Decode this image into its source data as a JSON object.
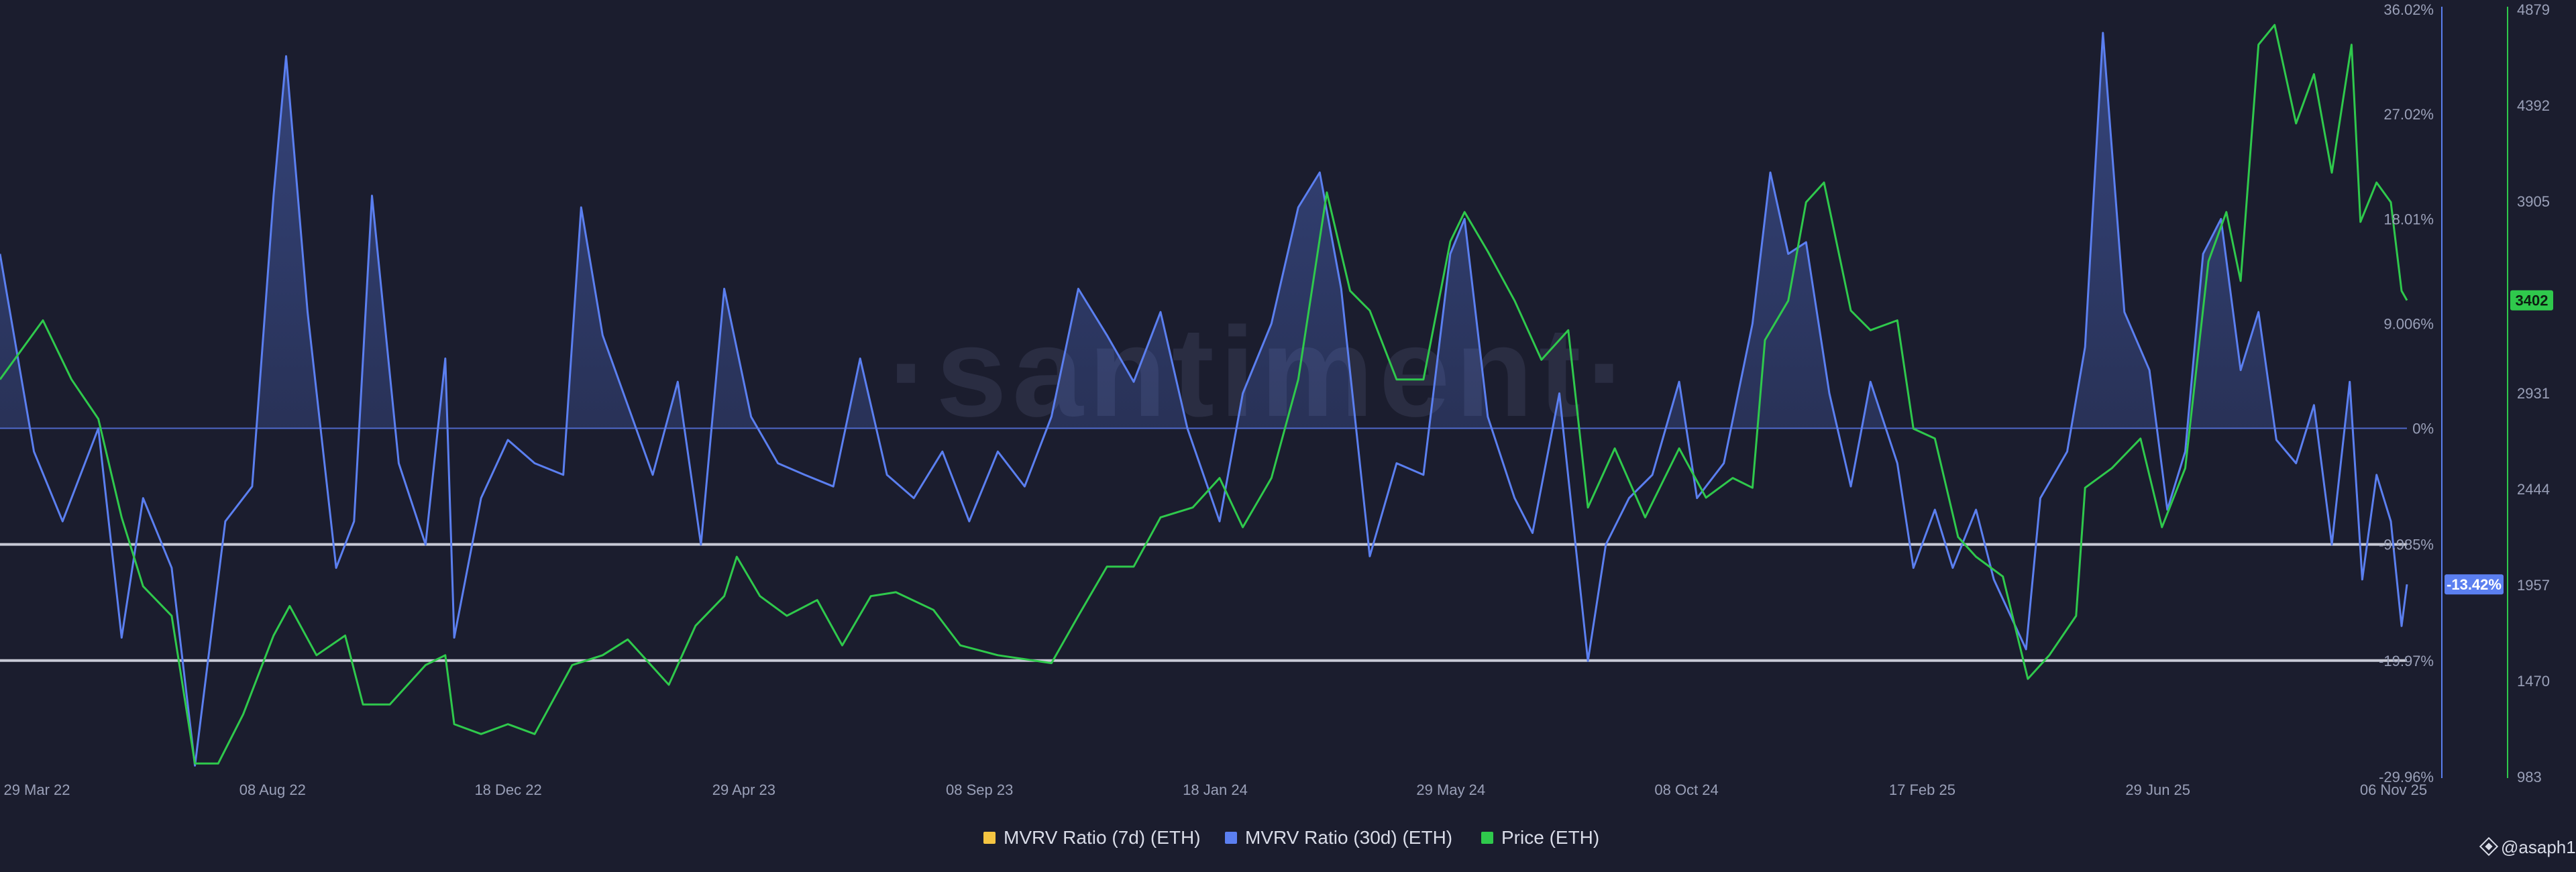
{
  "chart_data": {
    "type": "line",
    "title": "",
    "x_axis": {
      "ticks": [
        "29 Mar 22",
        "08 Aug 22",
        "18 Dec 22",
        "29 Apr 23",
        "08 Sep 23",
        "18 Jan 24",
        "29 May 24",
        "08 Oct 24",
        "17 Feb 25",
        "29 Jun 25",
        "06 Nov 25"
      ],
      "range": [
        "2022-03-01",
        "2025-11-06"
      ]
    },
    "y_axis_mvrv": {
      "ticks": [
        "36.02%",
        "27.02%",
        "18.01%",
        "9.006%",
        "0%",
        "-9.985%",
        "-19.97%",
        "-29.96%"
      ],
      "range": [
        -29.96,
        36.02
      ]
    },
    "y_axis_price": {
      "ticks": [
        "4879",
        "4392",
        "3905",
        "3418",
        "2931",
        "2444",
        "1957",
        "1470",
        "983"
      ],
      "range": [
        983,
        4879
      ]
    },
    "reference_lines": [
      0,
      -9.985,
      -19.97
    ],
    "current_values": {
      "mvrv_30d": "-13.42%",
      "price": "3402"
    },
    "legend": [
      {
        "name": "MVRV Ratio (7d) (ETH)",
        "color": "#f5c542"
      },
      {
        "name": "MVRV Ratio (30d) (ETH)",
        "color": "#5b7ff0"
      },
      {
        "name": "Price (ETH)",
        "color": "#2fc94c"
      }
    ],
    "series": [
      {
        "name": "MVRV Ratio (30d) (ETH)",
        "color": "#5b7ff0",
        "points": [
          [
            "2022-03-01",
            15
          ],
          [
            "2022-03-20",
            -2
          ],
          [
            "2022-04-05",
            -8
          ],
          [
            "2022-04-25",
            0
          ],
          [
            "2022-05-08",
            -18
          ],
          [
            "2022-05-20",
            -6
          ],
          [
            "2022-06-05",
            -12
          ],
          [
            "2022-06-18",
            -29
          ],
          [
            "2022-07-05",
            -8
          ],
          [
            "2022-07-20",
            -5
          ],
          [
            "2022-08-01",
            20
          ],
          [
            "2022-08-08",
            32
          ],
          [
            "2022-08-20",
            10
          ],
          [
            "2022-09-05",
            -12
          ],
          [
            "2022-09-15",
            -8
          ],
          [
            "2022-09-25",
            20
          ],
          [
            "2022-10-10",
            -3
          ],
          [
            "2022-10-25",
            -10
          ],
          [
            "2022-11-05",
            6
          ],
          [
            "2022-11-10",
            -18
          ],
          [
            "2022-11-25",
            -6
          ],
          [
            "2022-12-10",
            -1
          ],
          [
            "2022-12-25",
            -3
          ],
          [
            "2023-01-10",
            -4
          ],
          [
            "2023-01-20",
            19
          ],
          [
            "2023-02-01",
            8
          ],
          [
            "2023-02-15",
            2
          ],
          [
            "2023-03-01",
            -4
          ],
          [
            "2023-03-15",
            4
          ],
          [
            "2023-03-28",
            -10
          ],
          [
            "2023-04-10",
            12
          ],
          [
            "2023-04-25",
            1
          ],
          [
            "2023-05-10",
            -3
          ],
          [
            "2023-05-25",
            -4
          ],
          [
            "2023-06-10",
            -5
          ],
          [
            "2023-06-25",
            6
          ],
          [
            "2023-07-10",
            -4
          ],
          [
            "2023-07-25",
            -6
          ],
          [
            "2023-08-10",
            -2
          ],
          [
            "2023-08-25",
            -8
          ],
          [
            "2023-09-10",
            -2
          ],
          [
            "2023-09-25",
            -5
          ],
          [
            "2023-10-10",
            1
          ],
          [
            "2023-10-25",
            12
          ],
          [
            "2023-11-10",
            8
          ],
          [
            "2023-11-25",
            4
          ],
          [
            "2023-12-10",
            10
          ],
          [
            "2023-12-25",
            0
          ],
          [
            "2024-01-12",
            -8
          ],
          [
            "2024-01-25",
            3
          ],
          [
            "2024-02-10",
            9
          ],
          [
            "2024-02-25",
            19
          ],
          [
            "2024-03-08",
            22
          ],
          [
            "2024-03-20",
            12
          ],
          [
            "2024-04-05",
            -11
          ],
          [
            "2024-04-20",
            -3
          ],
          [
            "2024-05-05",
            -4
          ],
          [
            "2024-05-20",
            15
          ],
          [
            "2024-05-28",
            18
          ],
          [
            "2024-06-10",
            1
          ],
          [
            "2024-06-25",
            -6
          ],
          [
            "2024-07-05",
            -9
          ],
          [
            "2024-07-20",
            3
          ],
          [
            "2024-08-05",
            -20
          ],
          [
            "2024-08-15",
            -10
          ],
          [
            "2024-08-28",
            -6
          ],
          [
            "2024-09-10",
            -4
          ],
          [
            "2024-09-25",
            4
          ],
          [
            "2024-10-05",
            -6
          ],
          [
            "2024-10-20",
            -3
          ],
          [
            "2024-11-05",
            9
          ],
          [
            "2024-11-15",
            22
          ],
          [
            "2024-11-25",
            15
          ],
          [
            "2024-12-05",
            16
          ],
          [
            "2024-12-18",
            3
          ],
          [
            "2024-12-30",
            -5
          ],
          [
            "2025-01-10",
            4
          ],
          [
            "2025-01-25",
            -3
          ],
          [
            "2025-02-03",
            -12
          ],
          [
            "2025-02-15",
            -7
          ],
          [
            "2025-02-25",
            -12
          ],
          [
            "2025-03-10",
            -7
          ],
          [
            "2025-03-20",
            -13
          ],
          [
            "2025-04-07",
            -19
          ],
          [
            "2025-04-15",
            -6
          ],
          [
            "2025-04-30",
            -2
          ],
          [
            "2025-05-10",
            7
          ],
          [
            "2025-05-20",
            34
          ],
          [
            "2025-06-01",
            10
          ],
          [
            "2025-06-15",
            5
          ],
          [
            "2025-06-25",
            -7
          ],
          [
            "2025-07-05",
            -2
          ],
          [
            "2025-07-15",
            15
          ],
          [
            "2025-07-25",
            18
          ],
          [
            "2025-08-05",
            5
          ],
          [
            "2025-08-15",
            10
          ],
          [
            "2025-08-25",
            -1
          ],
          [
            "2025-09-05",
            -3
          ],
          [
            "2025-09-15",
            2
          ],
          [
            "2025-09-25",
            -10
          ],
          [
            "2025-10-05",
            4
          ],
          [
            "2025-10-12",
            -13
          ],
          [
            "2025-10-20",
            -4
          ],
          [
            "2025-10-28",
            -8
          ],
          [
            "2025-11-03",
            -17
          ],
          [
            "2025-11-06",
            -13.42
          ]
        ]
      },
      {
        "name": "Price (ETH)",
        "color": "#2fc94c",
        "points": [
          [
            "2022-03-01",
            3000
          ],
          [
            "2022-03-25",
            3300
          ],
          [
            "2022-04-10",
            3000
          ],
          [
            "2022-04-25",
            2800
          ],
          [
            "2022-05-08",
            2300
          ],
          [
            "2022-05-20",
            1950
          ],
          [
            "2022-06-05",
            1800
          ],
          [
            "2022-06-18",
            1050
          ],
          [
            "2022-07-01",
            1050
          ],
          [
            "2022-07-15",
            1300
          ],
          [
            "2022-08-01",
            1700
          ],
          [
            "2022-08-10",
            1850
          ],
          [
            "2022-08-25",
            1600
          ],
          [
            "2022-09-10",
            1700
          ],
          [
            "2022-09-20",
            1350
          ],
          [
            "2022-10-05",
            1350
          ],
          [
            "2022-10-25",
            1550
          ],
          [
            "2022-11-05",
            1600
          ],
          [
            "2022-11-10",
            1250
          ],
          [
            "2022-11-25",
            1200
          ],
          [
            "2022-12-10",
            1250
          ],
          [
            "2022-12-25",
            1200
          ],
          [
            "2023-01-15",
            1550
          ],
          [
            "2023-02-01",
            1600
          ],
          [
            "2023-02-15",
            1680
          ],
          [
            "2023-03-10",
            1450
          ],
          [
            "2023-03-25",
            1750
          ],
          [
            "2023-04-10",
            1900
          ],
          [
            "2023-04-17",
            2100
          ],
          [
            "2023-04-30",
            1900
          ],
          [
            "2023-05-15",
            1800
          ],
          [
            "2023-06-01",
            1880
          ],
          [
            "2023-06-15",
            1650
          ],
          [
            "2023-07-01",
            1900
          ],
          [
            "2023-07-15",
            1920
          ],
          [
            "2023-08-05",
            1830
          ],
          [
            "2023-08-20",
            1650
          ],
          [
            "2023-09-10",
            1600
          ],
          [
            "2023-09-25",
            1580
          ],
          [
            "2023-10-10",
            1560
          ],
          [
            "2023-10-25",
            1800
          ],
          [
            "2023-11-10",
            2050
          ],
          [
            "2023-11-25",
            2050
          ],
          [
            "2023-12-10",
            2300
          ],
          [
            "2023-12-28",
            2350
          ],
          [
            "2024-01-12",
            2500
          ],
          [
            "2024-01-25",
            2250
          ],
          [
            "2024-02-10",
            2500
          ],
          [
            "2024-02-25",
            3000
          ],
          [
            "2024-03-12",
            3950
          ],
          [
            "2024-03-25",
            3450
          ],
          [
            "2024-04-05",
            3350
          ],
          [
            "2024-04-20",
            3000
          ],
          [
            "2024-05-05",
            3000
          ],
          [
            "2024-05-20",
            3700
          ],
          [
            "2024-05-28",
            3850
          ],
          [
            "2024-06-10",
            3650
          ],
          [
            "2024-06-25",
            3400
          ],
          [
            "2024-07-10",
            3100
          ],
          [
            "2024-07-25",
            3250
          ],
          [
            "2024-08-05",
            2350
          ],
          [
            "2024-08-20",
            2650
          ],
          [
            "2024-09-06",
            2300
          ],
          [
            "2024-09-25",
            2650
          ],
          [
            "2024-10-10",
            2400
          ],
          [
            "2024-10-25",
            2500
          ],
          [
            "2024-11-05",
            2450
          ],
          [
            "2024-11-12",
            3200
          ],
          [
            "2024-11-25",
            3400
          ],
          [
            "2024-12-05",
            3900
          ],
          [
            "2024-12-15",
            4000
          ],
          [
            "2024-12-30",
            3350
          ],
          [
            "2025-01-10",
            3250
          ],
          [
            "2025-01-25",
            3300
          ],
          [
            "2025-02-03",
            2750
          ],
          [
            "2025-02-15",
            2700
          ],
          [
            "2025-02-28",
            2200
          ],
          [
            "2025-03-10",
            2100
          ],
          [
            "2025-03-25",
            2000
          ],
          [
            "2025-04-08",
            1480
          ],
          [
            "2025-04-20",
            1600
          ],
          [
            "2025-05-05",
            1800
          ],
          [
            "2025-05-10",
            2450
          ],
          [
            "2025-05-25",
            2550
          ],
          [
            "2025-06-10",
            2700
          ],
          [
            "2025-06-22",
            2250
          ],
          [
            "2025-07-05",
            2550
          ],
          [
            "2025-07-18",
            3600
          ],
          [
            "2025-07-28",
            3850
          ],
          [
            "2025-08-05",
            3500
          ],
          [
            "2025-08-15",
            4700
          ],
          [
            "2025-08-24",
            4800
          ],
          [
            "2025-09-05",
            4300
          ],
          [
            "2025-09-15",
            4550
          ],
          [
            "2025-09-25",
            4050
          ],
          [
            "2025-10-06",
            4700
          ],
          [
            "2025-10-11",
            3800
          ],
          [
            "2025-10-20",
            4000
          ],
          [
            "2025-10-28",
            3900
          ],
          [
            "2025-11-03",
            3450
          ],
          [
            "2025-11-06",
            3402
          ]
        ]
      }
    ]
  },
  "credit": "@asaph1",
  "credit_icon": "logo-mark-icon",
  "watermark": "·santiment·"
}
